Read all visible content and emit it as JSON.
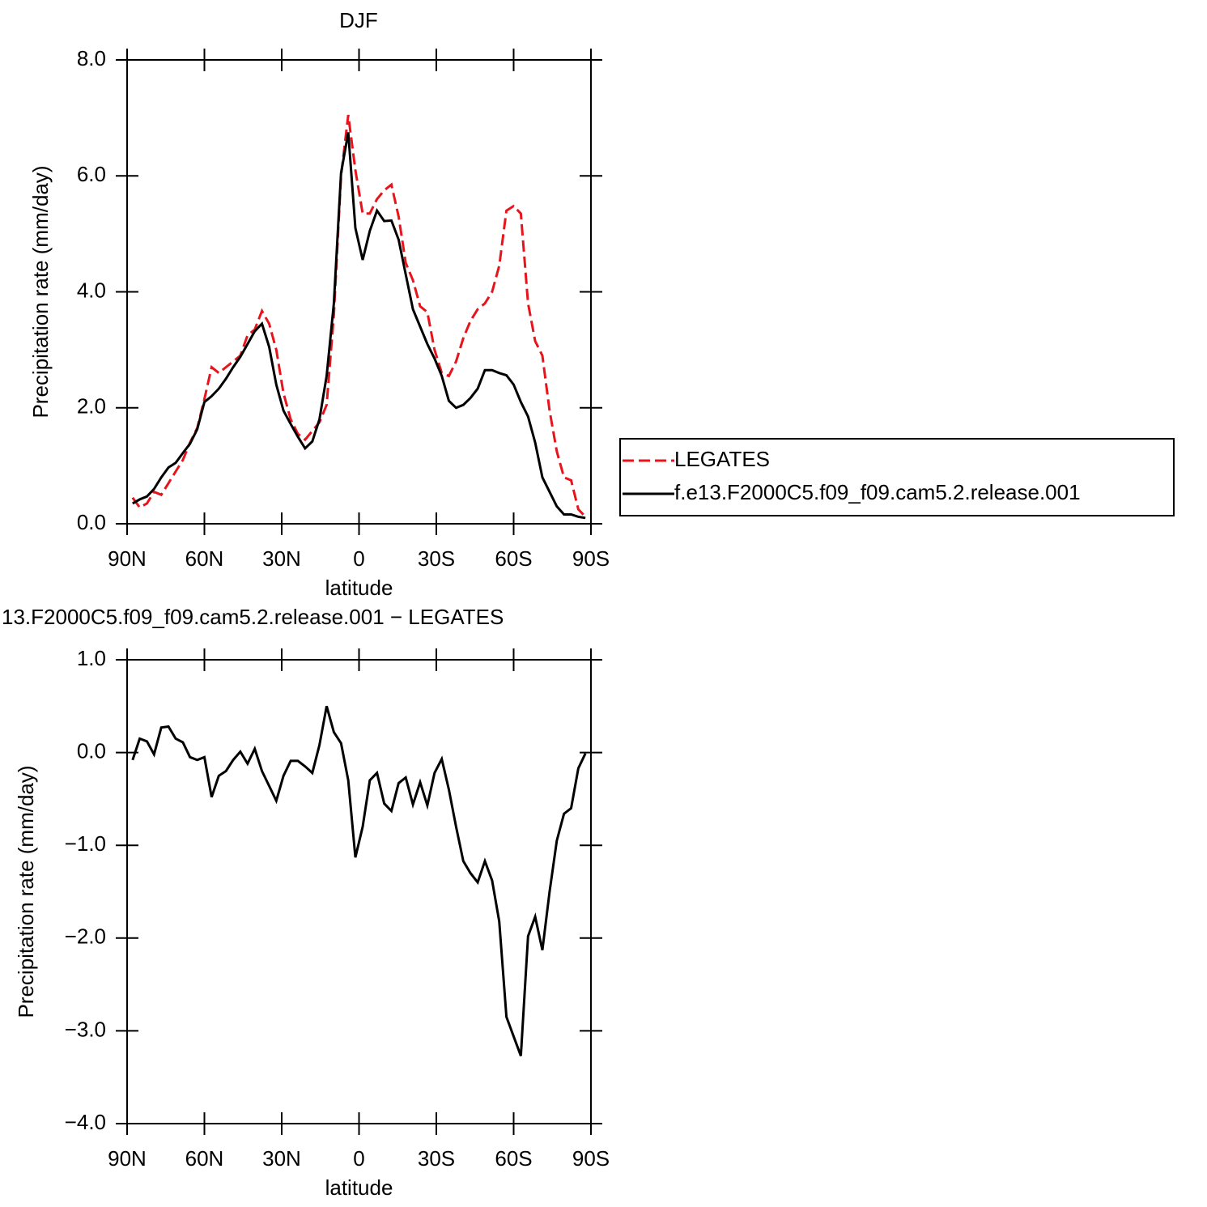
{
  "chart_data": [
    {
      "type": "line",
      "title": "DJF",
      "x_label": "latitude",
      "y_label": "Precipitation rate (mm/day)",
      "x": [
        87.86,
        85.1,
        82.31,
        79.53,
        76.74,
        73.95,
        71.16,
        68.37,
        65.58,
        62.79,
        60.0,
        57.21,
        54.42,
        51.63,
        48.84,
        46.05,
        43.26,
        40.47,
        37.67,
        34.88,
        32.09,
        29.3,
        26.51,
        23.72,
        20.93,
        18.14,
        15.35,
        12.56,
        9.77,
        6.98,
        4.19,
        1.4,
        -1.4,
        -4.19,
        -6.98,
        -9.77,
        -12.56,
        -15.35,
        -18.14,
        -20.93,
        -23.72,
        -26.51,
        -29.3,
        -32.09,
        -34.88,
        -37.67,
        -40.47,
        -43.26,
        -46.05,
        -48.84,
        -51.63,
        -54.42,
        -57.21,
        -60.0,
        -62.79,
        -65.58,
        -68.37,
        -71.16,
        -73.95,
        -76.74,
        -79.53,
        -82.31,
        -85.1,
        -87.86
      ],
      "xlim": [
        90,
        -90
      ],
      "xticks": [
        {
          "value": 90,
          "label": "90N"
        },
        {
          "value": 60,
          "label": "60N"
        },
        {
          "value": 30,
          "label": "30N"
        },
        0,
        {
          "value": -30,
          "label": "30S"
        },
        {
          "value": -60,
          "label": "60S"
        },
        {
          "value": -90,
          "label": "90S"
        }
      ],
      "ylim": [
        0,
        8
      ],
      "yticks": [
        {
          "value": 0,
          "label": "0.0"
        },
        {
          "value": 2,
          "label": "2.0"
        },
        {
          "value": 4,
          "label": "4.0"
        },
        {
          "value": 6,
          "label": "6.0"
        },
        {
          "value": 8,
          "label": "8.0"
        }
      ],
      "legend": "right",
      "series": [
        {
          "name": "LEGATES",
          "color": "#e8141c",
          "dashed": true,
          "values": [
            0.45,
            0.28,
            0.35,
            0.55,
            0.5,
            0.7,
            0.9,
            1.1,
            1.4,
            1.65,
            2.15,
            2.7,
            2.6,
            2.7,
            2.8,
            2.9,
            3.25,
            3.35,
            3.67,
            3.45,
            3.0,
            2.25,
            1.8,
            1.55,
            1.45,
            1.6,
            1.75,
            2.05,
            3.6,
            6.0,
            7.05,
            6.1,
            5.35,
            5.35,
            5.6,
            5.75,
            5.85,
            5.3,
            4.5,
            4.2,
            3.75,
            3.65,
            3.0,
            2.6,
            2.55,
            2.8,
            3.2,
            3.5,
            3.7,
            3.8,
            4.0,
            4.45,
            5.4,
            5.48,
            5.35,
            3.8,
            3.15,
            2.9,
            1.95,
            1.25,
            0.8,
            0.75,
            0.25,
            0.12
          ]
        },
        {
          "name": "f.e13.F2000C5.f09_f09.cam5.2.release.001",
          "color": "#000000",
          "dashed": false,
          "values": [
            0.35,
            0.42,
            0.47,
            0.6,
            0.8,
            0.97,
            1.05,
            1.22,
            1.38,
            1.63,
            2.1,
            2.2,
            2.33,
            2.5,
            2.7,
            2.88,
            3.1,
            3.32,
            3.45,
            3.05,
            2.4,
            1.95,
            1.72,
            1.5,
            1.3,
            1.42,
            1.8,
            2.55,
            3.8,
            6.05,
            6.75,
            5.1,
            4.55,
            5.05,
            5.4,
            5.22,
            5.23,
            4.9,
            4.3,
            3.7,
            3.4,
            3.1,
            2.85,
            2.55,
            2.12,
            2.0,
            2.05,
            2.17,
            2.33,
            2.65,
            2.65,
            2.6,
            2.56,
            2.4,
            2.1,
            1.85,
            1.4,
            0.8,
            0.55,
            0.3,
            0.16,
            0.16,
            0.12,
            0.1
          ]
        }
      ]
    },
    {
      "type": "line",
      "title": "13.F2000C5.f09_f09.cam5.2.release.001 − LEGATES",
      "x_label": "latitude",
      "y_label": "Precipitation rate (mm/day)",
      "x": [
        87.86,
        85.1,
        82.31,
        79.53,
        76.74,
        73.95,
        71.16,
        68.37,
        65.58,
        62.79,
        60.0,
        57.21,
        54.42,
        51.63,
        48.84,
        46.05,
        43.26,
        40.47,
        37.67,
        34.88,
        32.09,
        29.3,
        26.51,
        23.72,
        20.93,
        18.14,
        15.35,
        12.56,
        9.77,
        6.98,
        4.19,
        1.4,
        -1.4,
        -4.19,
        -6.98,
        -9.77,
        -12.56,
        -15.35,
        -18.14,
        -20.93,
        -23.72,
        -26.51,
        -29.3,
        -32.09,
        -34.88,
        -37.67,
        -40.47,
        -43.26,
        -46.05,
        -48.84,
        -51.63,
        -54.42,
        -57.21,
        -60.0,
        -62.79,
        -65.58,
        -68.37,
        -71.16,
        -73.95,
        -76.74,
        -79.53,
        -82.31,
        -85.1,
        -87.86
      ],
      "xlim": [
        90,
        -90
      ],
      "xticks": [
        {
          "value": 90,
          "label": "90N"
        },
        {
          "value": 60,
          "label": "60N"
        },
        {
          "value": 30,
          "label": "30N"
        },
        0,
        {
          "value": -30,
          "label": "30S"
        },
        {
          "value": -60,
          "label": "60S"
        },
        {
          "value": -90,
          "label": "90S"
        }
      ],
      "ylim": [
        -4,
        1
      ],
      "yticks": [
        {
          "value": 1,
          "label": "1.0"
        },
        {
          "value": 0,
          "label": "0.0"
        },
        {
          "value": -1,
          "label": "−1.0"
        },
        {
          "value": -2,
          "label": "−2.0"
        },
        {
          "value": -3,
          "label": "−3.0"
        },
        {
          "value": -4,
          "label": "−4.0"
        }
      ],
      "color": "#000000",
      "values": [
        -0.08,
        0.15,
        0.12,
        -0.02,
        0.27,
        0.28,
        0.15,
        0.11,
        -0.05,
        -0.08,
        -0.05,
        -0.48,
        -0.25,
        -0.2,
        -0.08,
        0.01,
        -0.12,
        0.04,
        -0.2,
        -0.36,
        -0.52,
        -0.25,
        -0.09,
        -0.09,
        -0.15,
        -0.22,
        0.08,
        0.5,
        0.22,
        0.1,
        -0.3,
        -1.13,
        -0.8,
        -0.3,
        -0.22,
        -0.55,
        -0.63,
        -0.33,
        -0.27,
        -0.56,
        -0.32,
        -0.57,
        -0.22,
        -0.07,
        -0.4,
        -0.8,
        -1.17,
        -1.3,
        -1.4,
        -1.17,
        -1.38,
        -1.82,
        -2.85,
        -3.06,
        -3.27,
        -1.98,
        -1.77,
        -2.13,
        -1.5,
        -0.95,
        -0.66,
        -0.6,
        -0.17,
        -0.01
      ]
    }
  ]
}
